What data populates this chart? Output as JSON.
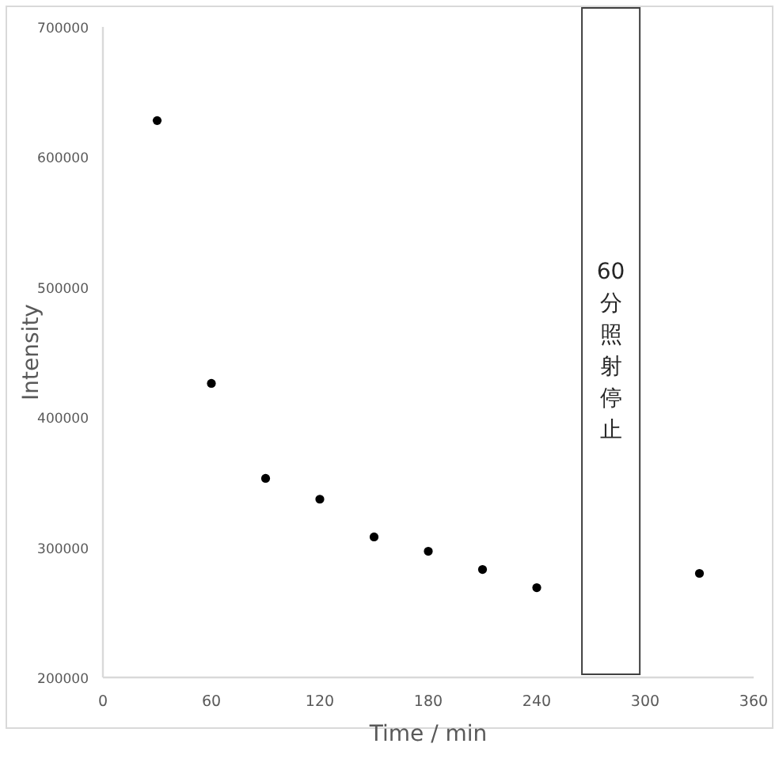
{
  "chart_data": {
    "type": "scatter",
    "xlabel": "Time / min",
    "ylabel": "Intensity",
    "x": [
      30,
      60,
      90,
      120,
      150,
      180,
      210,
      240,
      330
    ],
    "series": [
      {
        "color": "#000000",
        "values": [
          628000,
          426000,
          353000,
          337000,
          308000,
          297000,
          283000,
          269000,
          280000
        ]
      }
    ],
    "marker": "circle",
    "xlim": [
      0,
      360
    ],
    "xticks": [
      0,
      60,
      120,
      180,
      240,
      300,
      360
    ],
    "ylim": [
      200000,
      700000
    ],
    "yticks": [
      200000,
      300000,
      400000,
      500000,
      600000,
      700000
    ],
    "bands": [
      {
        "axis": "x",
        "from": 265,
        "to": 297,
        "label": "60 分照射停止",
        "color": "#ffffff"
      }
    ]
  }
}
